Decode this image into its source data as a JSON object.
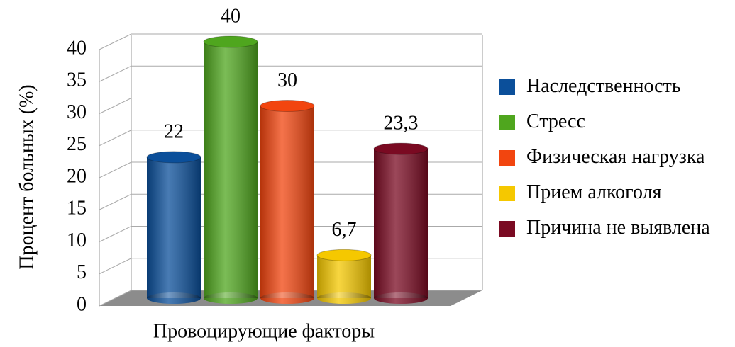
{
  "chart_data": {
    "type": "bar",
    "y_label": "Процент больных (%)",
    "x_label": "Провоцирующие факторы",
    "categories": [
      null
    ],
    "series": [
      {
        "name": "Наследственность",
        "color": "#0b4f9a",
        "values": [
          22
        ],
        "value_labels": [
          "22"
        ]
      },
      {
        "name": "Стресс",
        "color": "#4fa61e",
        "values": [
          40
        ],
        "value_labels": [
          "40"
        ]
      },
      {
        "name": "Физическая нагрузка",
        "color": "#f2450f",
        "values": [
          30
        ],
        "value_labels": [
          "30"
        ]
      },
      {
        "name": "Прием алкоголя",
        "color": "#f5c800",
        "values": [
          6.7
        ],
        "value_labels": [
          "6,7"
        ]
      },
      {
        "name": "Причина не выявлена",
        "color": "#7a0a22",
        "values": [
          23.3
        ],
        "value_labels": [
          "23,3"
        ]
      }
    ],
    "ylim": [
      0,
      40
    ],
    "yticks": [
      0,
      5,
      10,
      15,
      20,
      25,
      30,
      35,
      40
    ],
    "grid": true,
    "legend": "right"
  }
}
